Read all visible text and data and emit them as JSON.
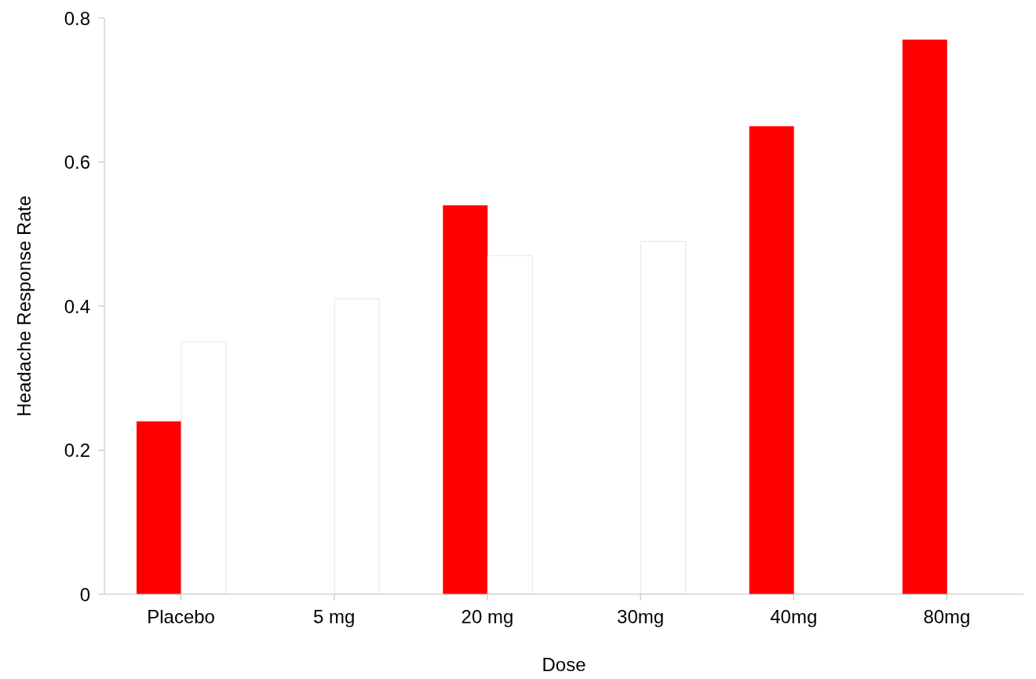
{
  "chart_data": {
    "type": "bar",
    "xlabel": "Dose",
    "ylabel": "Headache Response Rate",
    "categories": [
      "Placebo",
      "5 mg",
      "20 mg",
      "30mg",
      "40mg",
      "80mg"
    ],
    "series": [
      {
        "color": "#ff0000",
        "values": [
          0.24,
          null,
          0.54,
          null,
          0.65,
          0.77
        ]
      },
      {
        "color": "#ffffff",
        "values": [
          0.35,
          0.41,
          0.47,
          0.49,
          null,
          null
        ]
      }
    ],
    "ylim": [
      0,
      0.8
    ],
    "yticks": [
      0,
      0.2,
      0.4,
      0.6,
      0.8
    ],
    "grid": false,
    "legend": false
  }
}
